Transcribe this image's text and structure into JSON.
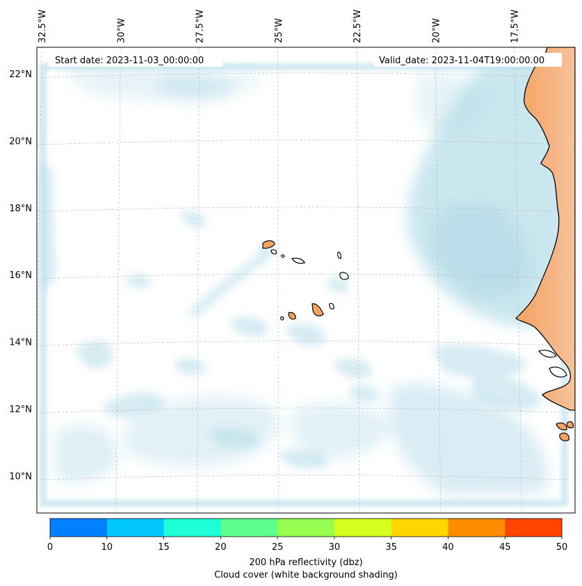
{
  "map": {
    "lat_labels": [
      {
        "value": 22,
        "text": "22°N"
      },
      {
        "value": 20,
        "text": "20°N"
      },
      {
        "value": 18,
        "text": "18°N"
      },
      {
        "value": 16,
        "text": "16°N"
      },
      {
        "value": 14,
        "text": "14°N"
      },
      {
        "value": 12,
        "text": "12°N"
      },
      {
        "value": 10,
        "text": "10°N"
      }
    ],
    "lon_labels": [
      {
        "value": -32.5,
        "text": "32.5°W"
      },
      {
        "value": -30,
        "text": "30°W"
      },
      {
        "value": -27.5,
        "text": "27.5°W"
      },
      {
        "value": -25,
        "text": "25°W"
      },
      {
        "value": -22.5,
        "text": "22.5°W"
      },
      {
        "value": -20,
        "text": "20°W"
      },
      {
        "value": -17.5,
        "text": "17.5°W"
      }
    ],
    "start_date": "Start date: 2023-11-03_00:00:00",
    "valid_date": "Valid_date: 2023-11-04T19:00:00.00",
    "colors": {
      "cloud": "#add8e6",
      "land": "#f4a460",
      "coast": "#000000"
    }
  },
  "colorbar": {
    "ticks": [
      "0",
      "10",
      "15",
      "20",
      "25",
      "30",
      "35",
      "40",
      "45",
      "50"
    ],
    "colors": [
      "#0080ff",
      "#00c8ff",
      "#1effd8",
      "#5dff8c",
      "#96ff50",
      "#d6ff1e",
      "#ffd700",
      "#ff8c00",
      "#ff4500"
    ],
    "label_line1": "200 hPa reflectivity (dbz)",
    "label_line2": "Cloud cover (white background shading)"
  }
}
